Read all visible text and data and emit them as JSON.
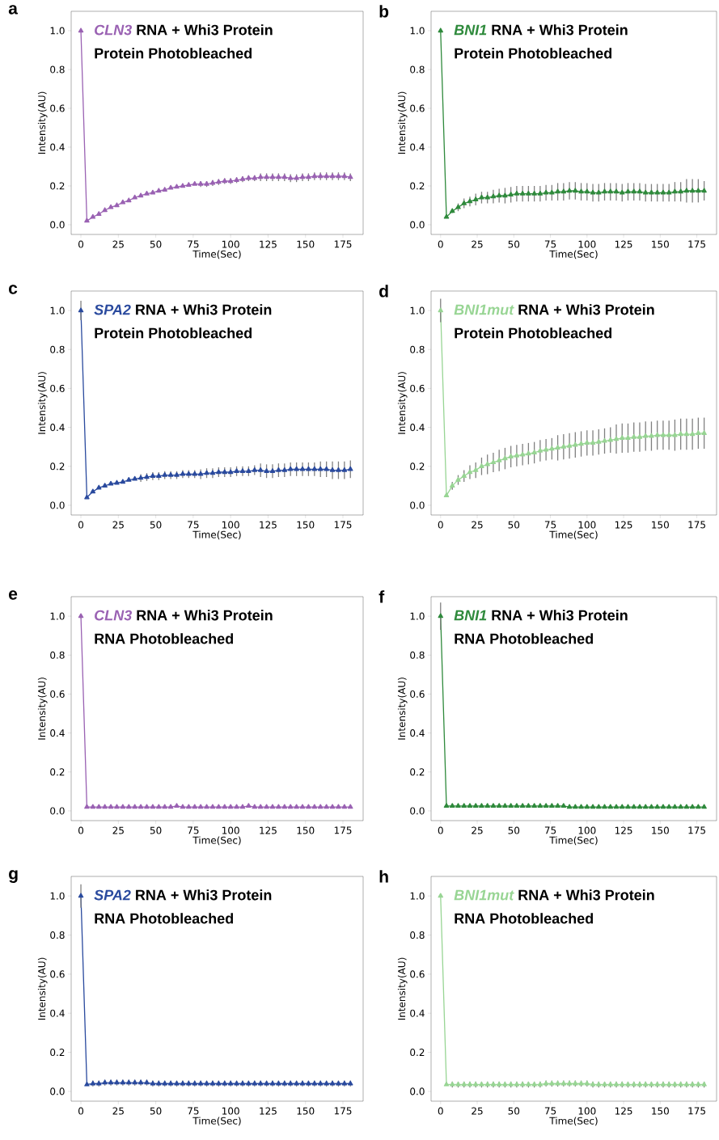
{
  "chart_data": [
    {
      "type": "line",
      "title": "RNA + Whi3 Protein",
      "subtitle": "Protein Photobleached",
      "xlabel": "Time(Sec)",
      "ylabel": "Intensity(AU)",
      "annotations": [
        "a"
      ],
      "marker": "triangle",
      "x": [
        0,
        4,
        8,
        12,
        16,
        20,
        24,
        28,
        32,
        36,
        40,
        44,
        48,
        52,
        56,
        60,
        64,
        68,
        72,
        76,
        80,
        84,
        88,
        92,
        96,
        100,
        104,
        108,
        112,
        116,
        120,
        124,
        128,
        132,
        136,
        140,
        144,
        148,
        152,
        156,
        160,
        164,
        168,
        172,
        176,
        180
      ],
      "series": [
        {
          "name": "CLN3",
          "color": "#9a62b3",
          "values": [
            1.0,
            0.02,
            0.04,
            0.055,
            0.075,
            0.09,
            0.1,
            0.115,
            0.125,
            0.14,
            0.15,
            0.16,
            0.165,
            0.175,
            0.18,
            0.19,
            0.195,
            0.2,
            0.205,
            0.21,
            0.21,
            0.21,
            0.215,
            0.22,
            0.225,
            0.225,
            0.23,
            0.235,
            0.24,
            0.24,
            0.245,
            0.245,
            0.245,
            0.245,
            0.245,
            0.24,
            0.24,
            0.245,
            0.245,
            0.25,
            0.25,
            0.25,
            0.25,
            0.25,
            0.25,
            0.245
          ],
          "errors": [
            0,
            0,
            null,
            null,
            null,
            null,
            null,
            null,
            null,
            null,
            null,
            null,
            null,
            null,
            null,
            null,
            null,
            null,
            null,
            null,
            0.015,
            0.015,
            0.015,
            0.015,
            0.015,
            0.015,
            0.015,
            0.015,
            0.015,
            0.015,
            0.02,
            0.02,
            0.02,
            0.02,
            0.02,
            0.02,
            0.02,
            0.02,
            0.02,
            0.02,
            0.02,
            0.02,
            0.02,
            0.02,
            0.02,
            0.02
          ]
        }
      ],
      "xlim": [
        -6.5,
        188.5
      ],
      "ylim": [
        -0.05,
        1.1
      ],
      "xticks": [
        0,
        25,
        50,
        75,
        100,
        125,
        150,
        175
      ],
      "yticks": [
        {
          "value": 0,
          "label": "0.0"
        },
        {
          "value": 0.2,
          "label": "0.2"
        },
        {
          "value": 0.4,
          "label": "0.4"
        },
        {
          "value": 0.6,
          "label": "0.6"
        },
        {
          "value": 0.8,
          "label": "0.8"
        },
        {
          "value": 1,
          "label": "1.0"
        }
      ]
    },
    {
      "type": "line",
      "title": "RNA + Whi3 Protein",
      "subtitle": "Protein Photobleached",
      "xlabel": "Time(Sec)",
      "ylabel": "Intensity(AU)",
      "annotations": [
        "b"
      ],
      "marker": "triangle",
      "x": [
        0,
        4,
        8,
        12,
        16,
        20,
        24,
        28,
        32,
        36,
        40,
        44,
        48,
        52,
        56,
        60,
        64,
        68,
        72,
        76,
        80,
        84,
        88,
        92,
        96,
        100,
        104,
        108,
        112,
        116,
        120,
        124,
        128,
        132,
        136,
        140,
        144,
        148,
        152,
        156,
        160,
        164,
        168,
        172,
        176,
        180
      ],
      "series": [
        {
          "name": "BNI1",
          "color": "#2f8a3c",
          "values": [
            1.0,
            0.04,
            0.07,
            0.09,
            0.11,
            0.12,
            0.13,
            0.14,
            0.14,
            0.145,
            0.15,
            0.15,
            0.155,
            0.16,
            0.16,
            0.16,
            0.16,
            0.16,
            0.165,
            0.165,
            0.17,
            0.17,
            0.175,
            0.175,
            0.17,
            0.17,
            0.165,
            0.165,
            0.17,
            0.17,
            0.17,
            0.165,
            0.17,
            0.17,
            0.17,
            0.165,
            0.165,
            0.165,
            0.165,
            0.165,
            0.17,
            0.17,
            0.175,
            0.175,
            0.175,
            0.175
          ],
          "errors": [
            0,
            0,
            0.01,
            0.02,
            0.025,
            0.025,
            0.03,
            0.03,
            0.03,
            0.035,
            0.035,
            0.04,
            0.04,
            0.04,
            0.04,
            0.04,
            0.04,
            0.04,
            0.04,
            0.04,
            0.045,
            0.045,
            0.045,
            0.045,
            0.045,
            0.045,
            0.045,
            0.045,
            0.045,
            0.045,
            0.045,
            0.045,
            0.045,
            0.045,
            0.045,
            0.045,
            0.045,
            0.045,
            0.045,
            0.045,
            0.05,
            0.05,
            0.06,
            0.06,
            0.06,
            0.05
          ]
        }
      ],
      "xlim": [
        -6.5,
        188.5
      ],
      "ylim": [
        -0.05,
        1.1
      ],
      "xticks": [
        0,
        25,
        50,
        75,
        100,
        125,
        150,
        175
      ],
      "yticks": [
        {
          "value": 0,
          "label": "0.0"
        },
        {
          "value": 0.2,
          "label": "0.2"
        },
        {
          "value": 0.4,
          "label": "0.4"
        },
        {
          "value": 0.6,
          "label": "0.6"
        },
        {
          "value": 0.8,
          "label": "0.8"
        },
        {
          "value": 1,
          "label": "1.0"
        }
      ]
    },
    {
      "type": "line",
      "title": "RNA + Whi3 Protein",
      "subtitle": "Protein Photobleached",
      "xlabel": "Time(Sec)",
      "ylabel": "Intensity(AU)",
      "annotations": [
        "c"
      ],
      "marker": "triangle",
      "x": [
        0,
        4,
        8,
        12,
        16,
        20,
        24,
        28,
        32,
        36,
        40,
        44,
        48,
        52,
        56,
        60,
        64,
        68,
        72,
        76,
        80,
        84,
        88,
        92,
        96,
        100,
        104,
        108,
        112,
        116,
        120,
        124,
        128,
        132,
        136,
        140,
        144,
        148,
        152,
        156,
        160,
        164,
        168,
        172,
        176,
        180
      ],
      "series": [
        {
          "name": "SPA2",
          "color": "#2a4a9e",
          "values": [
            1.0,
            0.04,
            0.07,
            0.09,
            0.1,
            0.11,
            0.115,
            0.12,
            0.13,
            0.135,
            0.14,
            0.145,
            0.15,
            0.15,
            0.155,
            0.155,
            0.155,
            0.16,
            0.16,
            0.16,
            0.16,
            0.165,
            0.165,
            0.17,
            0.17,
            0.17,
            0.175,
            0.175,
            0.175,
            0.18,
            0.18,
            0.175,
            0.175,
            0.18,
            0.18,
            0.185,
            0.185,
            0.185,
            0.185,
            0.185,
            0.185,
            0.185,
            0.18,
            0.18,
            0.18,
            0.185
          ],
          "errors": [
            0.05,
            0,
            null,
            null,
            null,
            null,
            null,
            null,
            null,
            null,
            0.02,
            0.02,
            0.02,
            0.02,
            0.02,
            0.02,
            0.02,
            0.02,
            0.02,
            0.02,
            0.025,
            0.025,
            0.025,
            0.025,
            0.025,
            0.025,
            0.025,
            0.025,
            0.025,
            0.025,
            0.035,
            0.035,
            0.035,
            0.035,
            0.035,
            0.035,
            0.035,
            0.035,
            0.035,
            0.035,
            0.04,
            0.04,
            0.045,
            0.045,
            0.045,
            0.045
          ]
        }
      ],
      "xlim": [
        -6.5,
        188.5
      ],
      "ylim": [
        -0.05,
        1.1
      ],
      "xticks": [
        0,
        25,
        50,
        75,
        100,
        125,
        150,
        175
      ],
      "yticks": [
        {
          "value": 0,
          "label": "0.0"
        },
        {
          "value": 0.2,
          "label": "0.2"
        },
        {
          "value": 0.4,
          "label": "0.4"
        },
        {
          "value": 0.6,
          "label": "0.6"
        },
        {
          "value": 0.8,
          "label": "0.8"
        },
        {
          "value": 1,
          "label": "1.0"
        }
      ]
    },
    {
      "type": "line",
      "title": "RNA + Whi3 Protein",
      "subtitle": "Protein Photobleached",
      "xlabel": "Time(Sec)",
      "ylabel": "Intensity(AU)",
      "annotations": [
        "d"
      ],
      "marker": "triangle",
      "x": [
        0,
        4,
        8,
        12,
        16,
        20,
        24,
        28,
        32,
        36,
        40,
        44,
        48,
        52,
        56,
        60,
        64,
        68,
        72,
        76,
        80,
        84,
        88,
        92,
        96,
        100,
        104,
        108,
        112,
        116,
        120,
        124,
        128,
        132,
        136,
        140,
        144,
        148,
        152,
        156,
        160,
        164,
        168,
        172,
        176,
        180
      ],
      "series": [
        {
          "name": "BNI1mut",
          "color": "#98d594",
          "values": [
            1.0,
            0.05,
            0.1,
            0.13,
            0.15,
            0.17,
            0.18,
            0.2,
            0.21,
            0.22,
            0.23,
            0.24,
            0.25,
            0.255,
            0.26,
            0.265,
            0.27,
            0.28,
            0.285,
            0.29,
            0.295,
            0.3,
            0.305,
            0.31,
            0.315,
            0.32,
            0.32,
            0.325,
            0.33,
            0.335,
            0.34,
            0.345,
            0.345,
            0.35,
            0.35,
            0.355,
            0.355,
            0.36,
            0.36,
            0.36,
            0.36,
            0.365,
            0.365,
            0.365,
            0.37,
            0.37
          ],
          "errors": [
            0.06,
            0,
            0.02,
            0.025,
            0.03,
            0.035,
            0.04,
            0.045,
            0.05,
            0.05,
            0.055,
            0.055,
            0.055,
            0.055,
            0.055,
            0.055,
            0.055,
            0.055,
            0.055,
            0.055,
            0.065,
            0.065,
            0.065,
            0.065,
            0.065,
            0.065,
            0.065,
            0.065,
            0.065,
            0.065,
            0.075,
            0.075,
            0.075,
            0.075,
            0.075,
            0.075,
            0.075,
            0.075,
            0.075,
            0.075,
            0.08,
            0.08,
            0.08,
            0.08,
            0.08,
            0.08
          ]
        }
      ],
      "xlim": [
        -6.5,
        188.5
      ],
      "ylim": [
        -0.05,
        1.1
      ],
      "xticks": [
        0,
        25,
        50,
        75,
        100,
        125,
        150,
        175
      ],
      "yticks": [
        {
          "value": 0,
          "label": "0.0"
        },
        {
          "value": 0.2,
          "label": "0.2"
        },
        {
          "value": 0.4,
          "label": "0.4"
        },
        {
          "value": 0.6,
          "label": "0.6"
        },
        {
          "value": 0.8,
          "label": "0.8"
        },
        {
          "value": 1,
          "label": "1.0"
        }
      ]
    },
    {
      "type": "line",
      "title": "RNA + Whi3 Protein",
      "subtitle": "RNA Photobleached",
      "xlabel": "Time(Sec)",
      "ylabel": "Intensity(AU)",
      "annotations": [
        "e"
      ],
      "marker": "triangle",
      "x": [
        0,
        4,
        8,
        12,
        16,
        20,
        24,
        28,
        32,
        36,
        40,
        44,
        48,
        52,
        56,
        60,
        64,
        68,
        72,
        76,
        80,
        84,
        88,
        92,
        96,
        100,
        104,
        108,
        112,
        116,
        120,
        124,
        128,
        132,
        136,
        140,
        144,
        148,
        152,
        156,
        160,
        164,
        168,
        172,
        176,
        180
      ],
      "series": [
        {
          "name": "CLN3",
          "color": "#9a62b3",
          "values": [
            1.0,
            0.02,
            0.02,
            0.02,
            0.02,
            0.02,
            0.02,
            0.02,
            0.02,
            0.02,
            0.02,
            0.02,
            0.02,
            0.02,
            0.02,
            0.02,
            0.025,
            0.02,
            0.02,
            0.02,
            0.02,
            0.02,
            0.02,
            0.02,
            0.02,
            0.02,
            0.02,
            0.02,
            0.025,
            0.02,
            0.02,
            0.02,
            0.02,
            0.02,
            0.02,
            0.02,
            0.02,
            0.02,
            0.02,
            0.02,
            0.02,
            0.02,
            0.02,
            0.02,
            0.02,
            0.02
          ],
          "errors": [
            0.01,
            0,
            null,
            null,
            null,
            null,
            null,
            null,
            null,
            null,
            null,
            null,
            null,
            null,
            null,
            null,
            null,
            null,
            null,
            null,
            null,
            null,
            null,
            null,
            null,
            null,
            null,
            null,
            null,
            null,
            null,
            null,
            null,
            null,
            null,
            null,
            null,
            null,
            null,
            null,
            null,
            null,
            null,
            null,
            null,
            null
          ]
        }
      ],
      "xlim": [
        -6.5,
        188.5
      ],
      "ylim": [
        -0.05,
        1.1
      ],
      "xticks": [
        0,
        25,
        50,
        75,
        100,
        125,
        150,
        175
      ],
      "yticks": [
        {
          "value": 0,
          "label": "0.0"
        },
        {
          "value": 0.2,
          "label": "0.2"
        },
        {
          "value": 0.4,
          "label": "0.4"
        },
        {
          "value": 0.6,
          "label": "0.6"
        },
        {
          "value": 0.8,
          "label": "0.8"
        },
        {
          "value": 1,
          "label": "1.0"
        }
      ]
    },
    {
      "type": "line",
      "title": "RNA + Whi3 Protein",
      "subtitle": "RNA Photobleached",
      "xlabel": "Time(Sec)",
      "ylabel": "Intensity(AU)",
      "annotations": [
        "f"
      ],
      "marker": "triangle",
      "x": [
        0,
        4,
        8,
        12,
        16,
        20,
        24,
        28,
        32,
        36,
        40,
        44,
        48,
        52,
        56,
        60,
        64,
        68,
        72,
        76,
        80,
        84,
        88,
        92,
        96,
        100,
        104,
        108,
        112,
        116,
        120,
        124,
        128,
        132,
        136,
        140,
        144,
        148,
        152,
        156,
        160,
        164,
        168,
        172,
        176,
        180
      ],
      "series": [
        {
          "name": "BNI1",
          "color": "#2f8a3c",
          "values": [
            1.0,
            0.025,
            0.025,
            0.025,
            0.025,
            0.025,
            0.025,
            0.025,
            0.025,
            0.025,
            0.025,
            0.025,
            0.025,
            0.025,
            0.025,
            0.025,
            0.025,
            0.025,
            0.025,
            0.025,
            0.025,
            0.025,
            0.02,
            0.02,
            0.02,
            0.02,
            0.02,
            0.02,
            0.02,
            0.02,
            0.02,
            0.02,
            0.02,
            0.02,
            0.02,
            0.02,
            0.02,
            0.02,
            0.02,
            0.02,
            0.02,
            0.02,
            0.02,
            0.02,
            0.02,
            0.02
          ],
          "errors": [
            0.07,
            0,
            null,
            null,
            null,
            null,
            null,
            null,
            null,
            null,
            null,
            null,
            null,
            null,
            null,
            null,
            null,
            null,
            null,
            null,
            null,
            null,
            null,
            null,
            null,
            null,
            null,
            null,
            null,
            null,
            null,
            null,
            null,
            null,
            null,
            null,
            null,
            null,
            null,
            null,
            null,
            null,
            null,
            null,
            null,
            null
          ]
        }
      ],
      "xlim": [
        -6.5,
        188.5
      ],
      "ylim": [
        -0.05,
        1.1
      ],
      "xticks": [
        0,
        25,
        50,
        75,
        100,
        125,
        150,
        175
      ],
      "yticks": [
        {
          "value": 0,
          "label": "0.0"
        },
        {
          "value": 0.2,
          "label": "0.2"
        },
        {
          "value": 0.4,
          "label": "0.4"
        },
        {
          "value": 0.6,
          "label": "0.6"
        },
        {
          "value": 0.8,
          "label": "0.8"
        },
        {
          "value": 1,
          "label": "1.0"
        }
      ]
    },
    {
      "type": "line",
      "title": "RNA + Whi3 Protein",
      "subtitle": "RNA Photobleached",
      "xlabel": "Time(Sec)",
      "ylabel": "Intensity(AU)",
      "annotations": [
        "g"
      ],
      "marker": "triangle",
      "x": [
        0,
        4,
        8,
        12,
        16,
        20,
        24,
        28,
        32,
        36,
        40,
        44,
        48,
        52,
        56,
        60,
        64,
        68,
        72,
        76,
        80,
        84,
        88,
        92,
        96,
        100,
        104,
        108,
        112,
        116,
        120,
        124,
        128,
        132,
        136,
        140,
        144,
        148,
        152,
        156,
        160,
        164,
        168,
        172,
        176,
        180
      ],
      "series": [
        {
          "name": "SPA2",
          "color": "#2a4a9e",
          "values": [
            1.0,
            0.035,
            0.04,
            0.04,
            0.045,
            0.045,
            0.045,
            0.045,
            0.045,
            0.045,
            0.045,
            0.045,
            0.04,
            0.04,
            0.04,
            0.04,
            0.04,
            0.04,
            0.04,
            0.04,
            0.04,
            0.04,
            0.04,
            0.04,
            0.04,
            0.04,
            0.04,
            0.04,
            0.04,
            0.04,
            0.04,
            0.04,
            0.04,
            0.04,
            0.04,
            0.04,
            0.04,
            0.04,
            0.04,
            0.04,
            0.04,
            0.04,
            0.04,
            0.04,
            0.04,
            0.04
          ],
          "errors": [
            0.06,
            0,
            0.015,
            0.015,
            0.015,
            0.015,
            0.015,
            0.015,
            0.015,
            0.015,
            0.015,
            0.015,
            0.015,
            0.015,
            0.015,
            0.015,
            0.015,
            0.015,
            0.015,
            0.015,
            0.015,
            0.015,
            0.015,
            0.015,
            0.015,
            0.015,
            0.015,
            0.015,
            0.015,
            0.015,
            0.015,
            0.015,
            0.015,
            0.015,
            0.015,
            0.015,
            0.015,
            0.015,
            0.015,
            0.015,
            0.015,
            0.015,
            0.015,
            0.015,
            0.015,
            0.015
          ]
        }
      ],
      "xlim": [
        -6.5,
        188.5
      ],
      "ylim": [
        -0.05,
        1.1
      ],
      "xticks": [
        0,
        25,
        50,
        75,
        100,
        125,
        150,
        175
      ],
      "yticks": [
        {
          "value": 0,
          "label": "0.0"
        },
        {
          "value": 0.2,
          "label": "0.2"
        },
        {
          "value": 0.4,
          "label": "0.4"
        },
        {
          "value": 0.6,
          "label": "0.6"
        },
        {
          "value": 0.8,
          "label": "0.8"
        },
        {
          "value": 1,
          "label": "1.0"
        }
      ]
    },
    {
      "type": "line",
      "title": "RNA + Whi3 Protein",
      "subtitle": "RNA Photobleached",
      "xlabel": "Time(Sec)",
      "ylabel": "Intensity(AU)",
      "annotations": [
        "h"
      ],
      "marker": "triangle",
      "x": [
        0,
        4,
        8,
        12,
        16,
        20,
        24,
        28,
        32,
        36,
        40,
        44,
        48,
        52,
        56,
        60,
        64,
        68,
        72,
        76,
        80,
        84,
        88,
        92,
        96,
        100,
        104,
        108,
        112,
        116,
        120,
        124,
        128,
        132,
        136,
        140,
        144,
        148,
        152,
        156,
        160,
        164,
        168,
        172,
        176,
        180
      ],
      "series": [
        {
          "name": "BNI1mut",
          "color": "#98d594",
          "values": [
            1.0,
            0.035,
            0.035,
            0.035,
            0.035,
            0.035,
            0.035,
            0.035,
            0.035,
            0.035,
            0.035,
            0.035,
            0.035,
            0.035,
            0.035,
            0.035,
            0.035,
            0.035,
            0.04,
            0.04,
            0.04,
            0.04,
            0.04,
            0.04,
            0.04,
            0.04,
            0.035,
            0.035,
            0.035,
            0.035,
            0.035,
            0.035,
            0.035,
            0.035,
            0.035,
            0.035,
            0.035,
            0.035,
            0.035,
            0.035,
            0.035,
            0.035,
            0.035,
            0.035,
            0.035,
            0.035
          ],
          "errors": [
            0,
            0,
            0.015,
            0.015,
            0.015,
            0.015,
            0.015,
            0.015,
            0.015,
            0.015,
            0.015,
            0.015,
            0.015,
            0.015,
            0.015,
            0.015,
            0.015,
            0.015,
            0.015,
            0.015,
            0.015,
            0.015,
            0.015,
            0.015,
            0.015,
            0.015,
            0.015,
            0.015,
            0.015,
            0.015,
            0.015,
            0.015,
            0.015,
            0.015,
            0.015,
            0.015,
            0.015,
            0.015,
            0.015,
            0.015,
            0.015,
            0.015,
            0.015,
            0.015,
            0.015,
            0.015
          ]
        }
      ],
      "xlim": [
        -6.5,
        188.5
      ],
      "ylim": [
        -0.05,
        1.1
      ],
      "xticks": [
        0,
        25,
        50,
        75,
        100,
        125,
        150,
        175
      ],
      "yticks": [
        {
          "value": 0,
          "label": "0.0"
        },
        {
          "value": 0.2,
          "label": "0.2"
        },
        {
          "value": 0.4,
          "label": "0.4"
        },
        {
          "value": 0.6,
          "label": "0.6"
        },
        {
          "value": 0.8,
          "label": "0.8"
        },
        {
          "value": 1,
          "label": "1.0"
        }
      ]
    }
  ]
}
